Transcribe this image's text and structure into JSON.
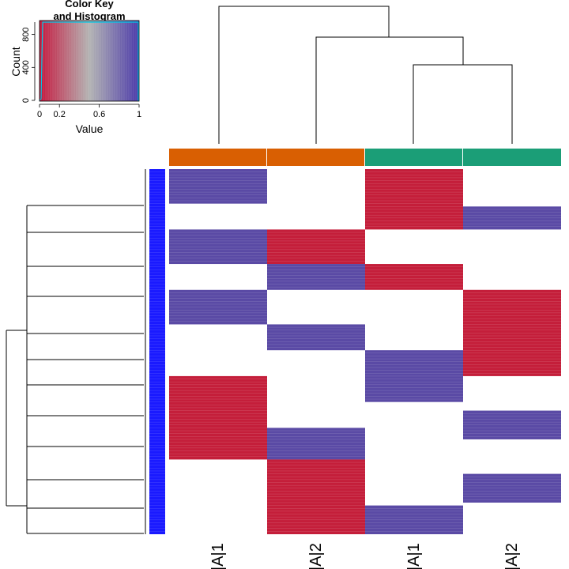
{
  "color_key": {
    "title_line1": "Color Key",
    "title_line2": "and Histogram",
    "ylabel": "Count",
    "xlabel": "Value",
    "y_ticks": [
      "0",
      "400",
      "800"
    ],
    "x_ticks": [
      "0",
      "0.2",
      "0.6",
      "1"
    ],
    "gradient": {
      "low": "#c4163c",
      "mid": "#b3b3b3",
      "high": "#4a38a8"
    }
  },
  "colors": {
    "high": "#c41e3a",
    "low": "#5a4aa5",
    "row_side": "#1a1aff",
    "group_a": "#d95f02",
    "group_b": "#1b9e77"
  },
  "chart_data": {
    "type": "heatmap",
    "columns": [
      {
        "label": "|A|1",
        "group": "a"
      },
      {
        "label": "|A|2",
        "group": "a"
      },
      {
        "label": "|A|1",
        "group": "b"
      },
      {
        "label": "|A|2",
        "group": "b"
      }
    ],
    "value_scale": [
      0,
      1
    ],
    "blocks": [
      {
        "col": 0,
        "rows": [
          0,
          12
        ],
        "value": "low"
      },
      {
        "col": 0,
        "rows": [
          21,
          33
        ],
        "value": "low"
      },
      {
        "col": 0,
        "rows": [
          42,
          54
        ],
        "value": "low"
      },
      {
        "col": 0,
        "rows": [
          72,
          101
        ],
        "value": "high"
      },
      {
        "col": 1,
        "rows": [
          21,
          33
        ],
        "value": "high"
      },
      {
        "col": 1,
        "rows": [
          33,
          42
        ],
        "value": "low"
      },
      {
        "col": 1,
        "rows": [
          54,
          63
        ],
        "value": "low"
      },
      {
        "col": 1,
        "rows": [
          90,
          101
        ],
        "value": "low"
      },
      {
        "col": 1,
        "rows": [
          101,
          127
        ],
        "value": "high"
      },
      {
        "col": 2,
        "rows": [
          0,
          21
        ],
        "value": "high"
      },
      {
        "col": 2,
        "rows": [
          33,
          42
        ],
        "value": "high"
      },
      {
        "col": 2,
        "rows": [
          63,
          81
        ],
        "value": "low"
      },
      {
        "col": 2,
        "rows": [
          117,
          127
        ],
        "value": "low"
      },
      {
        "col": 3,
        "rows": [
          13,
          21
        ],
        "value": "low"
      },
      {
        "col": 3,
        "rows": [
          42,
          72
        ],
        "value": "high"
      },
      {
        "col": 3,
        "rows": [
          84,
          94
        ],
        "value": "low"
      },
      {
        "col": 3,
        "rows": [
          106,
          116
        ],
        "value": "low"
      }
    ],
    "total_rows": 127
  }
}
